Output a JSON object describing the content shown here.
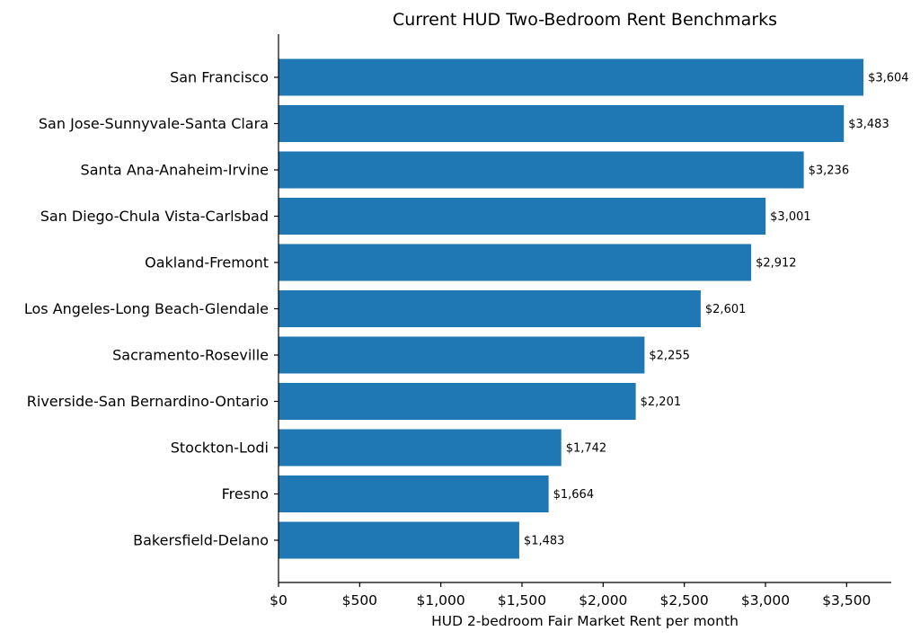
{
  "chart_data": {
    "type": "bar",
    "orientation": "horizontal",
    "title": "Current HUD Two-Bedroom Rent Benchmarks",
    "xlabel": "HUD 2-bedroom Fair Market Rent per month",
    "ylabel": "",
    "xlim": [
      0,
      3775
    ],
    "bar_color": "#1f77b4",
    "grid": false,
    "categories": [
      "San Francisco",
      "San Jose-Sunnyvale-Santa Clara",
      "Santa Ana-Anaheim-Irvine",
      "San Diego-Chula Vista-Carlsbad",
      "Oakland-Fremont",
      "Los Angeles-Long Beach-Glendale",
      "Sacramento-Roseville",
      "Riverside-San Bernardino-Ontario",
      "Stockton-Lodi",
      "Fresno",
      "Bakersfield-Delano"
    ],
    "values": [
      3604,
      3483,
      3236,
      3001,
      2912,
      2601,
      2255,
      2201,
      1742,
      1664,
      1483
    ],
    "data_labels": [
      "$3,604",
      "$3,483",
      "$3,236",
      "$3,001",
      "$2,912",
      "$2,601",
      "$2,255",
      "$2,201",
      "$1,742",
      "$1,664",
      "$1,483"
    ],
    "x_ticks": [
      0,
      500,
      1000,
      1500,
      2000,
      2500,
      3000,
      3500
    ],
    "x_tick_labels": [
      "$0",
      "$500",
      "$1,000",
      "$1,500",
      "$2,000",
      "$2,500",
      "$3,000",
      "$3,500"
    ]
  }
}
